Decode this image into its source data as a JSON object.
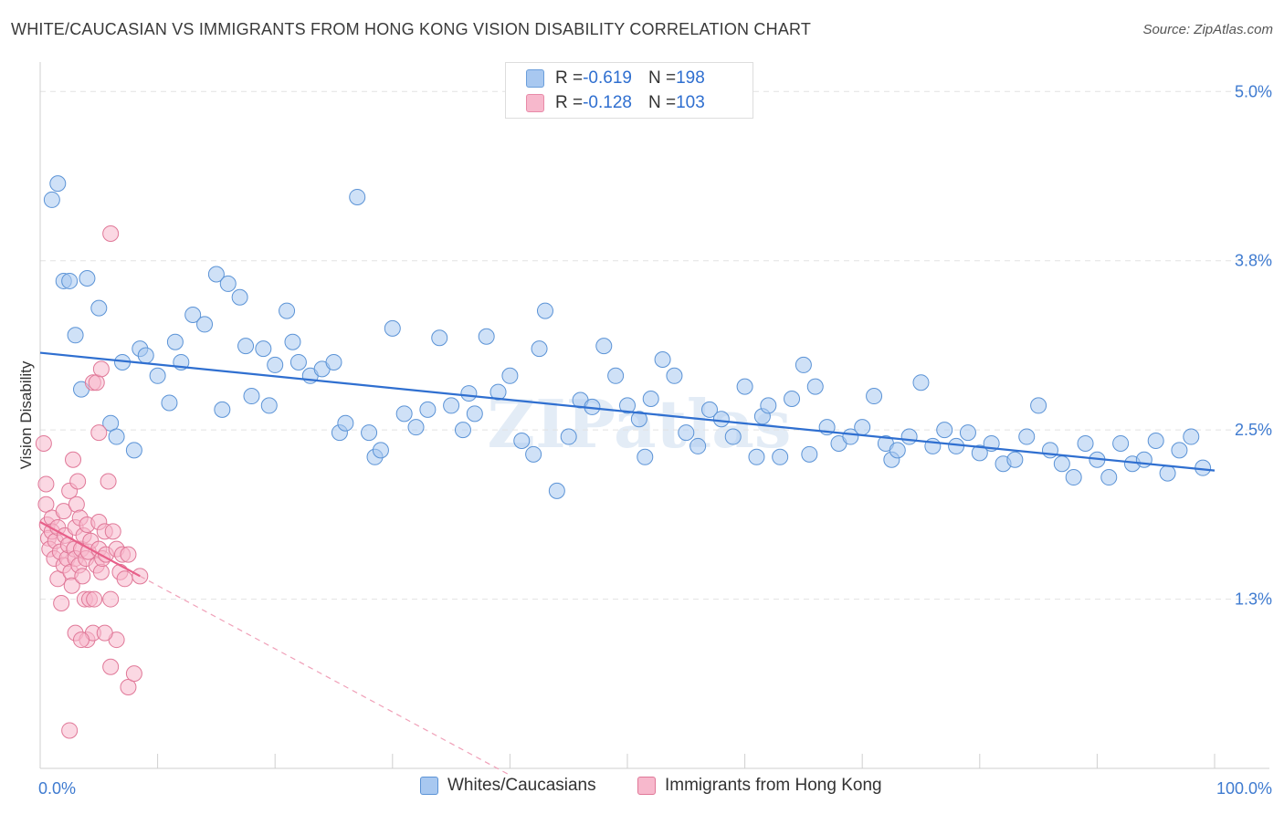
{
  "header": {
    "title": "WHITE/CAUCASIAN VS IMMIGRANTS FROM HONG KONG VISION DISABILITY CORRELATION CHART",
    "source": "Source: ZipAtlas.com"
  },
  "stats": [
    {
      "r_label": "R = ",
      "r_value": "-0.619",
      "n_label": "N = ",
      "n_value": "198",
      "color": "#a8c8f0",
      "stroke": "#6a9edb"
    },
    {
      "r_label": "R = ",
      "r_value": "-0.128",
      "n_label": "N = ",
      "n_value": "103",
      "color": "#f7b8cc",
      "stroke": "#e88aa8"
    }
  ],
  "chart_data": {
    "type": "scatter",
    "ylabel": "Vision Disability",
    "xlim": [
      0,
      100
    ],
    "ylim": [
      0.0,
      5.15
    ],
    "x_ticks": [
      {
        "value": 0,
        "label": "0.0%"
      },
      {
        "value": 100,
        "label": "100.0%"
      }
    ],
    "y_ticks": [
      {
        "value": 1.25,
        "label": "1.3%"
      },
      {
        "value": 2.5,
        "label": "2.5%"
      },
      {
        "value": 3.75,
        "label": "3.8%"
      },
      {
        "value": 5.0,
        "label": "5.0%"
      }
    ],
    "grid": true,
    "legend_position": "bottom-center",
    "series": [
      {
        "name": "Whites/Caucasians",
        "color": "#a8c8f0",
        "stroke": "#5b93d6",
        "trend": {
          "x": [
            0,
            100
          ],
          "y": [
            3.07,
            2.2
          ],
          "color": "#2f6fd0"
        },
        "points": [
          [
            1,
            4.2
          ],
          [
            1.5,
            4.32
          ],
          [
            2,
            3.6
          ],
          [
            2.5,
            3.6
          ],
          [
            3,
            3.2
          ],
          [
            3.5,
            2.8
          ],
          [
            4,
            3.62
          ],
          [
            5,
            3.4
          ],
          [
            6,
            2.55
          ],
          [
            6.5,
            2.45
          ],
          [
            7,
            3.0
          ],
          [
            8,
            2.35
          ],
          [
            8.5,
            3.1
          ],
          [
            9,
            3.05
          ],
          [
            10,
            2.9
          ],
          [
            11,
            2.7
          ],
          [
            11.5,
            3.15
          ],
          [
            12,
            3.0
          ],
          [
            13,
            3.35
          ],
          [
            14,
            3.28
          ],
          [
            15,
            3.65
          ],
          [
            15.5,
            2.65
          ],
          [
            16,
            3.58
          ],
          [
            17,
            3.48
          ],
          [
            17.5,
            3.12
          ],
          [
            18,
            2.75
          ],
          [
            19,
            3.1
          ],
          [
            19.5,
            2.68
          ],
          [
            20,
            2.98
          ],
          [
            21,
            3.38
          ],
          [
            21.5,
            3.15
          ],
          [
            22,
            3.0
          ],
          [
            23,
            2.9
          ],
          [
            24,
            2.95
          ],
          [
            25,
            3.0
          ],
          [
            25.5,
            2.48
          ],
          [
            26,
            2.55
          ],
          [
            27,
            4.22
          ],
          [
            28,
            2.48
          ],
          [
            28.5,
            2.3
          ],
          [
            29,
            2.35
          ],
          [
            30,
            3.25
          ],
          [
            31,
            2.62
          ],
          [
            32,
            2.52
          ],
          [
            33,
            2.65
          ],
          [
            34,
            3.18
          ],
          [
            35,
            2.68
          ],
          [
            36,
            2.5
          ],
          [
            36.5,
            2.77
          ],
          [
            37,
            2.62
          ],
          [
            38,
            3.19
          ],
          [
            39,
            2.78
          ],
          [
            40,
            2.9
          ],
          [
            41,
            2.42
          ],
          [
            42,
            2.32
          ],
          [
            42.5,
            3.1
          ],
          [
            43,
            3.38
          ],
          [
            44,
            2.05
          ],
          [
            45,
            2.45
          ],
          [
            46,
            2.72
          ],
          [
            47,
            2.67
          ],
          [
            48,
            3.12
          ],
          [
            49,
            2.9
          ],
          [
            50,
            2.68
          ],
          [
            51,
            2.58
          ],
          [
            51.5,
            2.3
          ],
          [
            52,
            2.73
          ],
          [
            53,
            3.02
          ],
          [
            54,
            2.9
          ],
          [
            55,
            2.48
          ],
          [
            56,
            2.38
          ],
          [
            57,
            2.65
          ],
          [
            58,
            2.58
          ],
          [
            59,
            2.45
          ],
          [
            60,
            2.82
          ],
          [
            61,
            2.3
          ],
          [
            61.5,
            2.6
          ],
          [
            62,
            2.68
          ],
          [
            63,
            2.3
          ],
          [
            64,
            2.73
          ],
          [
            65,
            2.98
          ],
          [
            65.5,
            2.32
          ],
          [
            66,
            2.82
          ],
          [
            67,
            2.52
          ],
          [
            68,
            2.4
          ],
          [
            69,
            2.45
          ],
          [
            70,
            2.52
          ],
          [
            71,
            2.75
          ],
          [
            72,
            2.4
          ],
          [
            72.5,
            2.28
          ],
          [
            73,
            2.35
          ],
          [
            74,
            2.45
          ],
          [
            75,
            2.85
          ],
          [
            76,
            2.38
          ],
          [
            77,
            2.5
          ],
          [
            78,
            2.38
          ],
          [
            79,
            2.48
          ],
          [
            80,
            2.33
          ],
          [
            81,
            2.4
          ],
          [
            82,
            2.25
          ],
          [
            83,
            2.28
          ],
          [
            84,
            2.45
          ],
          [
            85,
            2.68
          ],
          [
            86,
            2.35
          ],
          [
            87,
            2.25
          ],
          [
            88,
            2.15
          ],
          [
            89,
            2.4
          ],
          [
            90,
            2.28
          ],
          [
            91,
            2.15
          ],
          [
            92,
            2.4
          ],
          [
            93,
            2.25
          ],
          [
            94,
            2.28
          ],
          [
            95,
            2.42
          ],
          [
            96,
            2.18
          ],
          [
            97,
            2.35
          ],
          [
            98,
            2.45
          ],
          [
            99,
            2.22
          ]
        ]
      },
      {
        "name": "Immigrants from Hong Kong",
        "color": "#f7b8cc",
        "stroke": "#e07898",
        "trend": {
          "x": [
            0,
            8.5
          ],
          "y": [
            1.82,
            1.42
          ],
          "color": "#e8608a"
        },
        "trend_extension": {
          "x": [
            8.5,
            40
          ],
          "y": [
            1.42,
            -0.05
          ],
          "color": "#f0a0b8"
        },
        "points": [
          [
            0.3,
            2.4
          ],
          [
            0.5,
            2.1
          ],
          [
            0.5,
            1.95
          ],
          [
            0.6,
            1.8
          ],
          [
            0.7,
            1.7
          ],
          [
            0.8,
            1.62
          ],
          [
            1,
            1.85
          ],
          [
            1,
            1.75
          ],
          [
            1.2,
            1.55
          ],
          [
            1.3,
            1.68
          ],
          [
            1.5,
            1.4
          ],
          [
            1.5,
            1.78
          ],
          [
            1.7,
            1.6
          ],
          [
            1.8,
            1.22
          ],
          [
            2,
            1.5
          ],
          [
            2,
            1.9
          ],
          [
            2.1,
            1.72
          ],
          [
            2.3,
            1.55
          ],
          [
            2.4,
            1.65
          ],
          [
            2.5,
            2.05
          ],
          [
            2.6,
            1.45
          ],
          [
            2.7,
            1.35
          ],
          [
            2.8,
            2.28
          ],
          [
            2.9,
            1.62
          ],
          [
            3,
            1.78
          ],
          [
            3,
            1.55
          ],
          [
            3.1,
            1.95
          ],
          [
            3.2,
            2.12
          ],
          [
            3.3,
            1.5
          ],
          [
            3.4,
            1.85
          ],
          [
            3.5,
            1.62
          ],
          [
            3.6,
            1.42
          ],
          [
            3.7,
            1.72
          ],
          [
            3.8,
            1.25
          ],
          [
            3.9,
            1.55
          ],
          [
            4,
            1.8
          ],
          [
            4.1,
            1.6
          ],
          [
            4.2,
            1.25
          ],
          [
            4.3,
            1.68
          ],
          [
            4.5,
            2.85
          ],
          [
            4.6,
            1.25
          ],
          [
            4.8,
            1.5
          ],
          [
            5,
            1.62
          ],
          [
            5,
            1.82
          ],
          [
            5.2,
            1.45
          ],
          [
            5.3,
            1.55
          ],
          [
            5.5,
            1.75
          ],
          [
            5.6,
            1.58
          ],
          [
            5.8,
            2.12
          ],
          [
            6,
            1.25
          ],
          [
            6.2,
            1.75
          ],
          [
            6.5,
            1.62
          ],
          [
            6.8,
            1.45
          ],
          [
            7,
            1.58
          ],
          [
            7.2,
            1.4
          ],
          [
            7.5,
            1.58
          ],
          [
            3,
            1.0
          ],
          [
            4,
            0.95
          ],
          [
            6,
            0.75
          ],
          [
            6.5,
            0.95
          ],
          [
            7.5,
            0.6
          ],
          [
            2.5,
            0.28
          ],
          [
            8,
            0.7
          ],
          [
            5,
            2.48
          ],
          [
            4.5,
            1.0
          ],
          [
            4.8,
            2.85
          ],
          [
            5.5,
            1.0
          ],
          [
            3.5,
            0.95
          ],
          [
            8.5,
            1.42
          ],
          [
            6,
            3.95
          ],
          [
            5.2,
            2.95
          ]
        ]
      }
    ]
  },
  "watermark": "ZIPatlas"
}
